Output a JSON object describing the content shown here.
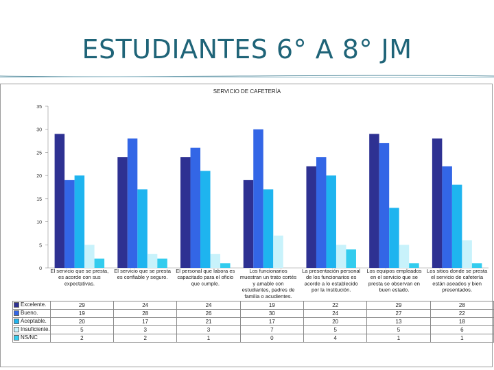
{
  "slide_title": "ESTUDIANTES 6° A 8° JM",
  "chart_data": {
    "type": "bar",
    "title": "SERVICIO DE CAFETERÍA",
    "xlabel": "",
    "ylabel": "",
    "ylim": [
      0,
      35
    ],
    "yticks": [
      0,
      5,
      10,
      15,
      20,
      25,
      30,
      35
    ],
    "grid": false,
    "legend": "table-below",
    "categories": [
      "El servicio que se presta, es acorde con sus expectativas.",
      "El servicio que se presta es confiable y seguro.",
      "El personal que labora es capacitado para el oficio que cumple.",
      "Los funcionarios muestran un trato cortés y amable con estudiantes, padres de familia o acudientes.",
      "La presentación personal de los funcionarios es acorde a lo establecido por la Institución.",
      "Los equipos empleados en el servicio que se presta se observan en buen estado.",
      "Los sitios donde se presta el servicio de cafetería están aseados y bien presentados."
    ],
    "category_lines": [
      [
        "El servicio que se presta,",
        "es acorde con sus",
        "expectativas."
      ],
      [
        "El servicio que se presta",
        "es confiable y seguro."
      ],
      [
        "El personal que labora es",
        "capacitado para el oficio",
        "que cumple."
      ],
      [
        "Los funcionarios",
        "muestran un trato cortés",
        "y amable con",
        "estudiantes, padres de",
        "familia o acudientes."
      ],
      [
        "La presentación personal",
        "de los funcionarios es",
        "acorde a lo establecido",
        "por la Institución."
      ],
      [
        "Los equipos empleados",
        "en el servicio que se",
        "presta se observan en",
        "buen estado."
      ],
      [
        "Los sitios donde se presta",
        "el servicio de cafetería",
        "están aseados y bien",
        "presentados."
      ]
    ],
    "series": [
      {
        "name": "Excelente.",
        "color": "#2e3192",
        "values": [
          29,
          24,
          24,
          19,
          22,
          29,
          28
        ]
      },
      {
        "name": "Bueno.",
        "color": "#3366e6",
        "values": [
          19,
          28,
          26,
          30,
          24,
          27,
          22
        ]
      },
      {
        "name": "Aceptable.",
        "color": "#1eb4ef",
        "values": [
          20,
          17,
          21,
          17,
          20,
          13,
          18
        ]
      },
      {
        "name": "Insuficiente.",
        "color": "#c8f2fb",
        "values": [
          5,
          3,
          3,
          7,
          5,
          5,
          6
        ]
      },
      {
        "name": "NS/NC",
        "color": "#33ccee",
        "values": [
          2,
          2,
          1,
          0,
          4,
          1,
          1
        ]
      }
    ]
  }
}
